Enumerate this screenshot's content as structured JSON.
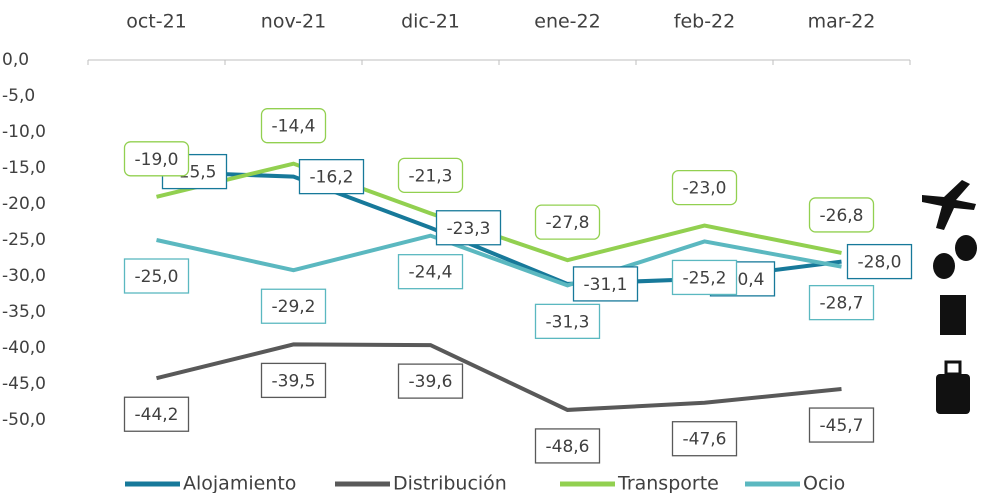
{
  "chart_data": {
    "type": "line",
    "categories": [
      "oct-21",
      "nov-21",
      "dic-21",
      "ene-22",
      "feb-22",
      "mar-22"
    ],
    "series": [
      {
        "name": "Alojamiento",
        "color": "#17799a",
        "values": [
          -15.5,
          -16.2,
          -23.3,
          -31.1,
          -30.4,
          -28.0
        ],
        "value_labels": [
          "-15,5",
          "-16,2",
          "-23,3",
          "-31,1",
          "-30,4",
          "-28,0"
        ]
      },
      {
        "name": "Distribución",
        "color": "#595959",
        "values": [
          -44.2,
          -39.5,
          -39.6,
          -48.6,
          -47.6,
          -45.7
        ],
        "value_labels": [
          "-44,2",
          "-39,5",
          "-39,6",
          "-48,6",
          "-47,6",
          "-45,7"
        ]
      },
      {
        "name": "Transporte",
        "color": "#92d050",
        "values": [
          -19.0,
          -14.4,
          -21.3,
          -27.8,
          -23.0,
          -26.8
        ],
        "value_labels": [
          "-19,0",
          "-14,4",
          "-21,3",
          "-27,8",
          "-23,0",
          "-26,8"
        ]
      },
      {
        "name": "Ocio",
        "color": "#5bb8c0",
        "values": [
          -25.0,
          -29.2,
          -24.4,
          -31.3,
          -25.2,
          -28.7
        ],
        "value_labels": [
          "-25,0",
          "-29,2",
          "-24,4",
          "-31,3",
          "-25,2",
          "-28,7"
        ]
      }
    ],
    "ylim": [
      -50,
      0
    ],
    "yticks": [
      {
        "value": 0,
        "label": "0,0"
      },
      {
        "value": -5,
        "label": "-5,0"
      },
      {
        "value": -10,
        "label": "-10,0"
      },
      {
        "value": -15,
        "label": "-15,0"
      },
      {
        "value": -20,
        "label": "-20,0"
      },
      {
        "value": -25,
        "label": "-25,0"
      },
      {
        "value": -30,
        "label": "-30,0"
      },
      {
        "value": -35,
        "label": "-35,0"
      },
      {
        "value": -40,
        "label": "-40,0"
      },
      {
        "value": -45,
        "label": "-45,0"
      },
      {
        "value": -50,
        "label": "-50,0"
      }
    ]
  }
}
